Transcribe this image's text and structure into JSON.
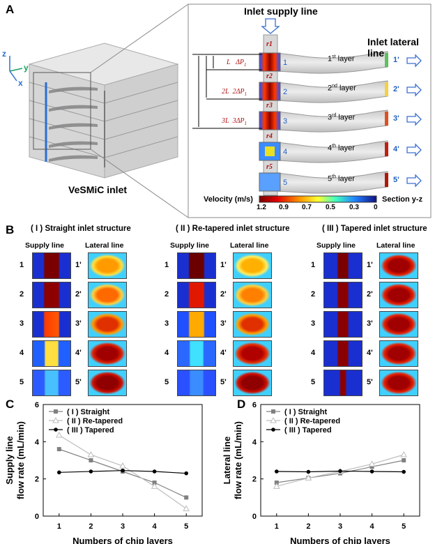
{
  "panelA": {
    "letter": "A",
    "left_caption": "VeSMiC inlet",
    "supply_title": "Inlet supply line",
    "lateral_title": "Inlet lateral line",
    "axis_z": "z",
    "axis_y": "y",
    "axis_x": "x",
    "r_labels": [
      "r1",
      "r2",
      "r3",
      "r4",
      "r5"
    ],
    "layer_numbers": [
      "1",
      "2",
      "3",
      "4",
      "5"
    ],
    "layer_names": [
      {
        "n": "1",
        "sup": "st",
        "rest": " layer"
      },
      {
        "n": "2",
        "sup": "nd",
        "rest": " layer"
      },
      {
        "n": "3",
        "sup": "rd",
        "rest": " layer"
      },
      {
        "n": "4",
        "sup": "th",
        "rest": " layer"
      },
      {
        "n": "5",
        "sup": "th",
        "rest": " layer"
      }
    ],
    "outlets": [
      "1'",
      "2'",
      "3'",
      "4'",
      "5'"
    ],
    "dims": [
      {
        "L": "L",
        "P": "ΔP",
        "psub": "1"
      },
      {
        "L": "2L",
        "P": "2ΔP",
        "psub": "1"
      },
      {
        "L": "3L",
        "P": "3ΔP",
        "psub": "1"
      }
    ],
    "velocity_label": "Velocity (m/s)",
    "section_label": "Section y-z",
    "colorbar_ticks": [
      "1.2",
      "0.9",
      "0.7",
      "0.5",
      "0.3",
      "0"
    ]
  },
  "panelB": {
    "letter": "B",
    "groups": [
      {
        "title": "( I ) Straight inlet structure",
        "supply": "Supply line",
        "lateral": "Lateral line"
      },
      {
        "title": "( II ) Re-tapered inlet structure",
        "supply": "Supply line",
        "lateral": "Lateral line"
      },
      {
        "title": "( III ) Tapered inlet structure",
        "supply": "Supply line",
        "lateral": "Lateral line"
      }
    ],
    "row_labels": [
      "1",
      "2",
      "3",
      "4",
      "5"
    ],
    "lateral_labels": [
      "1'",
      "2'",
      "3'",
      "4'",
      "5'"
    ]
  },
  "chart_data": [
    {
      "panel": "C",
      "type": "line",
      "x": [
        1,
        2,
        3,
        4,
        5
      ],
      "series": [
        {
          "name": "( I ) Straight",
          "values": [
            3.6,
            3.0,
            2.4,
            1.8,
            1.0
          ],
          "marker": "square",
          "color": "#808080"
        },
        {
          "name": "( II ) Re-tapered",
          "values": [
            4.35,
            3.3,
            2.7,
            1.6,
            0.4
          ],
          "marker": "triangle",
          "color": "#bdbdbd"
        },
        {
          "name": "( III ) Tapered",
          "values": [
            2.35,
            2.4,
            2.45,
            2.4,
            2.3
          ],
          "marker": "circle",
          "color": "#000000"
        }
      ],
      "xlabel": "Numbers of chip layers",
      "ylabel_line1": "Supply line",
      "ylabel_line2": "flow rate (mL/min)",
      "xlim": [
        0.5,
        5.5
      ],
      "ylim": [
        0,
        6
      ],
      "yticks": [
        0,
        2,
        4,
        6
      ],
      "xticks": [
        1,
        2,
        3,
        4,
        5
      ],
      "legend_position": "top-left"
    },
    {
      "panel": "D",
      "type": "line",
      "x": [
        1,
        2,
        3,
        4,
        5
      ],
      "series": [
        {
          "name": "( I ) Straight",
          "values": [
            1.8,
            2.05,
            2.3,
            2.65,
            3.0
          ],
          "marker": "square",
          "color": "#808080"
        },
        {
          "name": "( II ) Re-tapered",
          "values": [
            1.6,
            2.05,
            2.4,
            2.8,
            3.3
          ],
          "marker": "triangle",
          "color": "#bdbdbd"
        },
        {
          "name": "( III ) Tapered",
          "values": [
            2.4,
            2.38,
            2.42,
            2.4,
            2.38
          ],
          "marker": "circle",
          "color": "#000000"
        }
      ],
      "xlabel": "Numbers of chip layers",
      "ylabel_line1": "Lateral line",
      "ylabel_line2": "flow rate (mL/min)",
      "xlim": [
        0.5,
        5.5
      ],
      "ylim": [
        0,
        6
      ],
      "yticks": [
        0,
        2,
        4,
        6
      ],
      "xticks": [
        1,
        2,
        3,
        4,
        5
      ],
      "legend_position": "top-left"
    }
  ]
}
